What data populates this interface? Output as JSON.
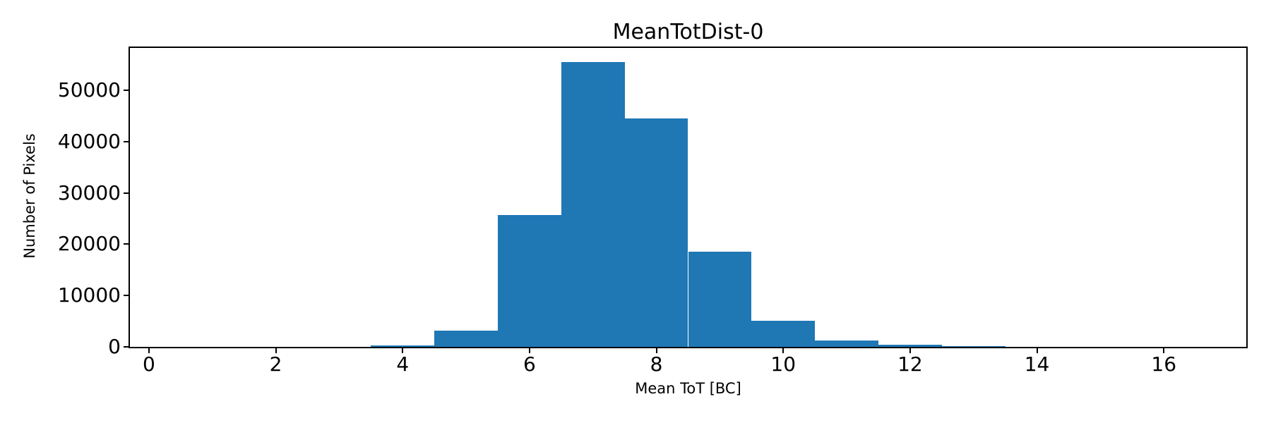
{
  "chart_data": {
    "type": "bar",
    "subtype": "histogram",
    "title": "MeanTotDist-0",
    "xlabel": "Mean ToT [BC]",
    "ylabel": "Number of Pixels",
    "bar_color": "#1f77b4",
    "grid": false,
    "bin_width": 1,
    "bin_centers": [
      1,
      2,
      3,
      4,
      5,
      6,
      7,
      8,
      9,
      10,
      11,
      12,
      13,
      14,
      15,
      16
    ],
    "counts": [
      0,
      0,
      0,
      300,
      3200,
      25700,
      55500,
      44500,
      18600,
      5100,
      1200,
      400,
      150,
      0,
      0,
      0
    ],
    "xticks": [
      0,
      2,
      4,
      6,
      8,
      10,
      12,
      14,
      16
    ],
    "yticks": [
      0,
      10000,
      20000,
      30000,
      40000,
      50000
    ],
    "xlim": [
      -0.3,
      17.3
    ],
    "ylim": [
      0,
      58275
    ]
  }
}
